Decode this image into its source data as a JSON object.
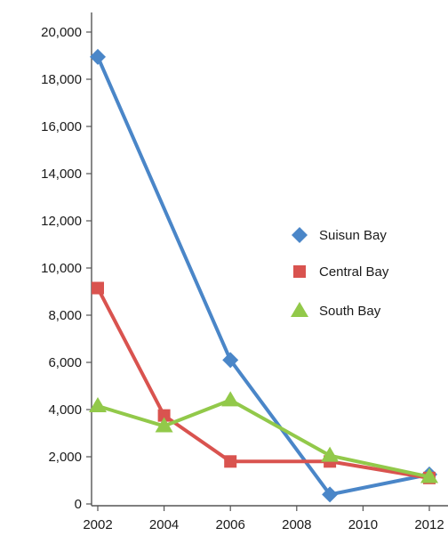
{
  "chart_data": {
    "type": "line",
    "title": "",
    "xlabel": "",
    "ylabel": "",
    "xlim": [
      2002,
      2012
    ],
    "ylim": [
      0,
      20000
    ],
    "x_ticks": [
      "2002",
      "2004",
      "2006",
      "2008",
      "2010",
      "2012"
    ],
    "y_ticks": [
      "0",
      "2,000",
      "4,000",
      "6,000",
      "8,000",
      "10,000",
      "12,000",
      "14,000",
      "16,000",
      "18,000",
      "20,000"
    ],
    "grid": false,
    "legend_position": "right",
    "series": [
      {
        "name": "Suisun Bay",
        "marker": "diamond",
        "color": "#4a86c8",
        "points": [
          [
            2002,
            18950
          ],
          [
            2006,
            6100
          ],
          [
            2009,
            400
          ],
          [
            2012,
            1250
          ]
        ]
      },
      {
        "name": "Central Bay",
        "marker": "square",
        "color": "#d9534f",
        "points": [
          [
            2002,
            9150
          ],
          [
            2004,
            3750
          ],
          [
            2006,
            1800
          ],
          [
            2009,
            1800
          ],
          [
            2012,
            1100
          ]
        ]
      },
      {
        "name": "South Bay",
        "marker": "triangle",
        "color": "#92c94a",
        "points": [
          [
            2002,
            4150
          ],
          [
            2004,
            3300
          ],
          [
            2006,
            4400
          ],
          [
            2009,
            2050
          ],
          [
            2012,
            1150
          ]
        ]
      }
    ]
  }
}
